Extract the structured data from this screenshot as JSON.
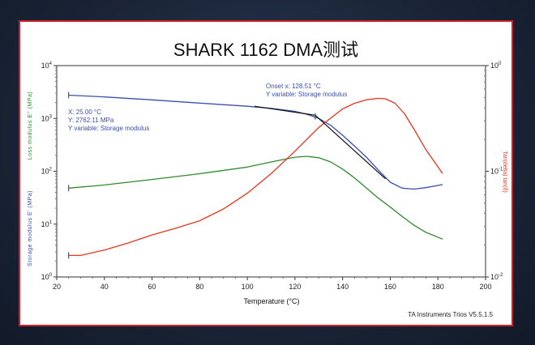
{
  "chart_data": {
    "type": "line",
    "title": "SHARK 1162 DMA测试",
    "xlabel": "Temperature (°C)",
    "ylabel_left_top": "Loss modulus E'' (MPa)",
    "ylabel_left_bottom": "Storage modulus E' (MPa)",
    "ylabel_right": "Tan(delta) tan(δ)",
    "xlim": [
      20,
      200
    ],
    "x_ticks": [
      20,
      40,
      60,
      80,
      100,
      120,
      140,
      160,
      180,
      200
    ],
    "y_left_scale": "log",
    "y_left_lim": [
      1,
      10000
    ],
    "y_left_ticks": [
      "10^0",
      "10^1",
      "10^2",
      "10^3",
      "10^4"
    ],
    "y_right_scale": "log",
    "y_right_lim": [
      0.01,
      1
    ],
    "y_right_ticks": [
      "10^-2",
      "10^-1",
      "10^0"
    ],
    "grid": false,
    "series": [
      {
        "name": "Storage modulus",
        "axis": "left",
        "color": "#3a4fb0",
        "x": [
          25,
          40,
          60,
          80,
          100,
          110,
          120,
          125,
          130,
          135,
          140,
          145,
          150,
          155,
          160,
          165,
          170,
          175,
          182
        ],
        "y": [
          2762,
          2550,
          2250,
          1950,
          1700,
          1550,
          1360,
          1200,
          1000,
          740,
          480,
          300,
          185,
          105,
          62,
          48,
          46,
          49,
          56
        ]
      },
      {
        "name": "Loss modulus",
        "axis": "left",
        "color": "#2e8b2e",
        "x": [
          25,
          40,
          60,
          80,
          100,
          110,
          120,
          125,
          130,
          135,
          140,
          145,
          150,
          155,
          160,
          165,
          170,
          175,
          182
        ],
        "y": [
          48,
          55,
          70,
          90,
          120,
          150,
          185,
          192,
          180,
          150,
          110,
          75,
          48,
          31,
          21,
          14,
          9.5,
          7,
          5.2
        ]
      },
      {
        "name": "Tan(delta)",
        "axis": "right",
        "color": "#e8341c",
        "x": [
          25,
          30,
          40,
          50,
          60,
          70,
          80,
          90,
          100,
          110,
          120,
          130,
          140,
          145,
          150,
          155,
          158,
          162,
          166,
          170,
          175,
          182
        ],
        "y": [
          0.016,
          0.016,
          0.018,
          0.021,
          0.025,
          0.029,
          0.034,
          0.044,
          0.062,
          0.095,
          0.155,
          0.26,
          0.39,
          0.44,
          0.475,
          0.49,
          0.485,
          0.44,
          0.35,
          0.25,
          0.16,
          0.095
        ]
      }
    ],
    "tangent_lines": [
      {
        "x": [
          103,
          128.5
        ],
        "y": [
          1700,
          1150
        ]
      },
      {
        "x": [
          128.5,
          158
        ],
        "y": [
          1150,
          72
        ]
      }
    ],
    "markers": [
      {
        "x": 25,
        "y": 2762
      },
      {
        "x": 128.5,
        "y": 1100
      },
      {
        "x": 25,
        "y": 48
      },
      {
        "x": 25,
        "y": 3.0
      }
    ],
    "annotations": {
      "point": {
        "line1": "X: 25.00 °C",
        "line2": "Y: 2762.11 MPa",
        "line3": "Y variable: Storage modulus"
      },
      "onset": {
        "line1": "Onset x: 128.51 °C",
        "line2": "Y variable: Storage modulus"
      }
    },
    "footer": "TA Instruments Trios V5.5.1.5"
  }
}
